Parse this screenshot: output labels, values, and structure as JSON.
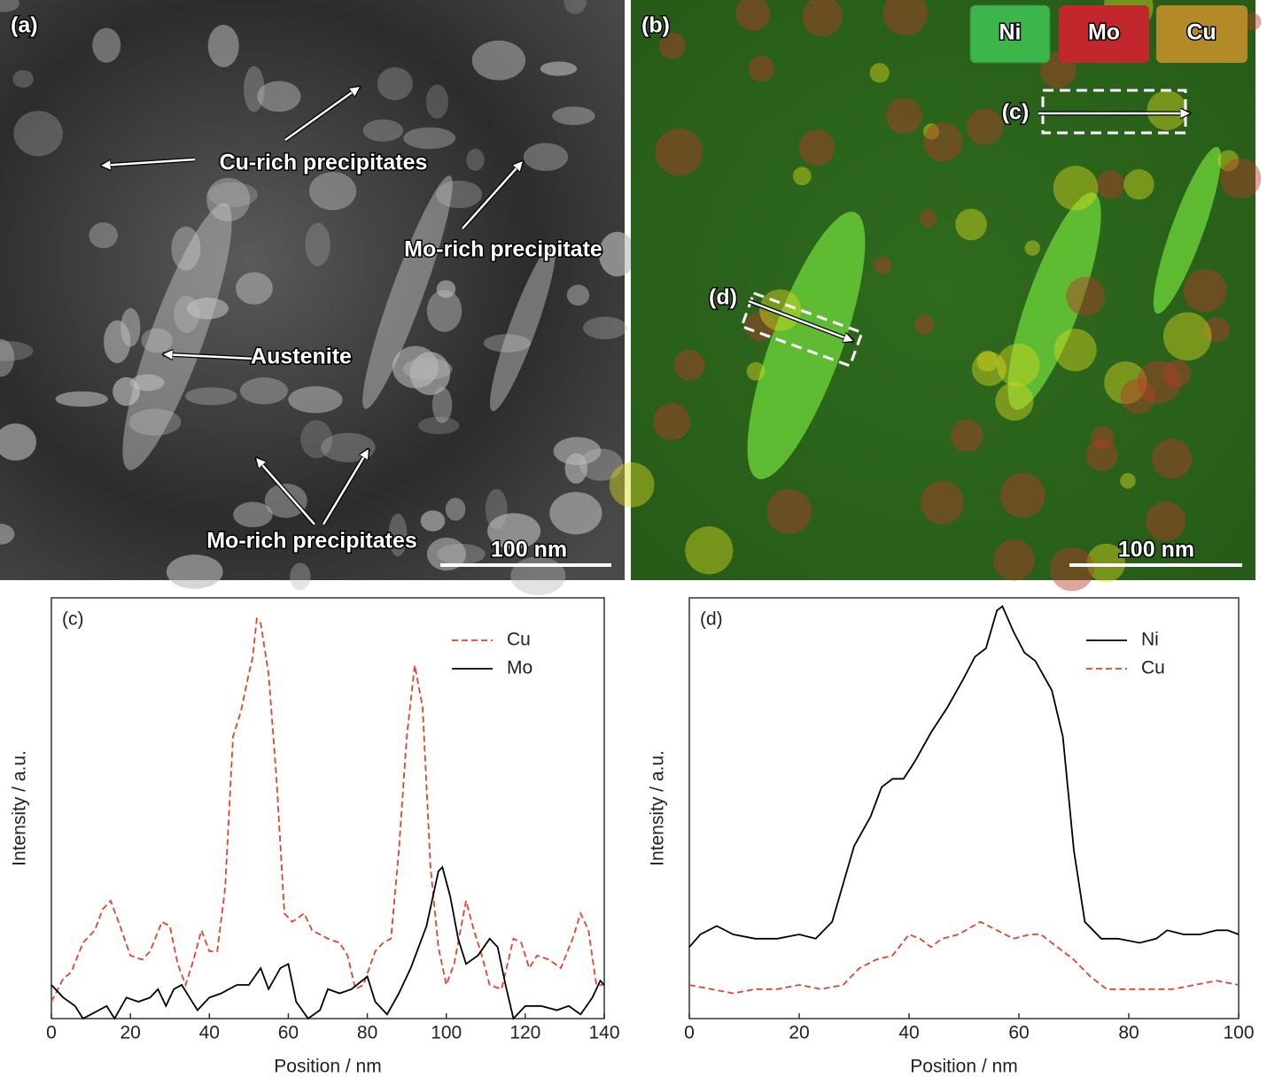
{
  "images": [
    {
      "panel_label": "(a)",
      "annotations": [
        "Cu-rich precipitates",
        "Mo-rich precipitate",
        "Austenite",
        "Mo-rich precipitates"
      ],
      "scale_bar": "100 nm"
    },
    {
      "panel_label": "(b)",
      "legend": [
        "Ni",
        "Mo",
        "Cu"
      ],
      "line_labels": [
        "(c)",
        "(d)"
      ],
      "scale_bar": "100 nm"
    }
  ],
  "chart_data": [
    {
      "type": "line",
      "panel_label": "(c)",
      "xlabel": "Position / nm",
      "ylabel": "Intensity / a.u.",
      "xlim": [
        0,
        140
      ],
      "xticks": [
        0,
        20,
        40,
        60,
        80,
        100,
        120,
        140
      ],
      "ylim": [
        0,
        100
      ],
      "legend": "upper right",
      "series": [
        {
          "name": "Cu",
          "color": "#e8412a",
          "linestyle": "dashed",
          "x": [
            0,
            3,
            5,
            8,
            11,
            13,
            15,
            17,
            20,
            23,
            25,
            28,
            30,
            32,
            34,
            36,
            38,
            40,
            42,
            44,
            46,
            48,
            50,
            51,
            52,
            53,
            55,
            57,
            59,
            61,
            64,
            66,
            70,
            73,
            75,
            77,
            79,
            82,
            84,
            86,
            88,
            90,
            92,
            94,
            96,
            98,
            100,
            102,
            105,
            107,
            109,
            111,
            114,
            117,
            119,
            121,
            123,
            126,
            129,
            132,
            134,
            136,
            138,
            140
          ],
          "values": [
            4,
            9.5,
            11,
            18,
            21,
            26,
            28,
            23,
            15,
            14,
            16,
            23,
            22,
            13,
            8,
            14,
            21,
            16,
            16,
            31,
            67,
            73,
            82,
            86,
            95,
            94,
            82,
            57,
            25,
            23,
            25,
            21,
            19,
            18,
            15,
            7,
            8,
            16,
            18,
            19,
            40,
            67,
            84,
            74,
            36,
            17,
            8,
            13,
            28,
            21,
            15,
            8,
            7,
            19,
            18,
            12,
            15,
            14,
            12,
            19,
            25,
            21,
            8,
            8
          ]
        },
        {
          "name": "Mo",
          "color": "#000000",
          "linestyle": "solid",
          "x": [
            0,
            3,
            6,
            8,
            10,
            14,
            16,
            19,
            22,
            25,
            27,
            29,
            31,
            33,
            35,
            37,
            40,
            43,
            47,
            50,
            53,
            55,
            58,
            60,
            62,
            65,
            68,
            70,
            73,
            76,
            80,
            82,
            85,
            88,
            91,
            95,
            98,
            99,
            101,
            103,
            105,
            108,
            111,
            113,
            115,
            117,
            120,
            124,
            128,
            131,
            134,
            137,
            139,
            140
          ],
          "values": [
            8,
            5,
            3,
            0,
            1,
            3,
            0,
            5,
            4,
            5,
            7,
            3,
            7,
            8,
            5,
            2,
            5,
            6,
            8,
            8,
            12,
            7,
            12,
            13,
            4,
            0,
            2,
            7,
            6,
            7,
            10,
            4,
            1,
            6,
            12,
            22,
            35,
            36,
            29,
            19,
            13,
            15,
            19,
            17,
            8,
            0,
            3,
            3,
            2,
            3,
            1,
            5,
            9,
            8
          ]
        }
      ]
    },
    {
      "type": "line",
      "panel_label": "(d)",
      "xlabel": "Position / nm",
      "ylabel": "Intensity / a.u.",
      "xlim": [
        0,
        100
      ],
      "xticks": [
        0,
        20,
        40,
        60,
        80,
        100
      ],
      "ylim": [
        0,
        100
      ],
      "legend": "upper right",
      "series": [
        {
          "name": "Ni",
          "color": "#000000",
          "linestyle": "solid",
          "x": [
            0,
            2,
            5,
            8,
            12,
            16,
            20,
            23,
            26,
            28,
            30,
            33,
            35,
            37,
            39,
            41,
            44,
            47,
            50,
            52,
            54,
            56,
            57,
            59,
            61,
            63,
            66,
            68,
            70,
            72,
            75,
            78,
            82,
            85,
            87,
            90,
            93,
            96,
            98,
            100
          ],
          "values": [
            17,
            20,
            22,
            20,
            19,
            19,
            20,
            19,
            23,
            32,
            41,
            48,
            55,
            57,
            57,
            61,
            68,
            74,
            81,
            86,
            88,
            97,
            98,
            92,
            87,
            85,
            78,
            67,
            40,
            23,
            19,
            19,
            18,
            19,
            21,
            20,
            20,
            21,
            21,
            20
          ]
        },
        {
          "name": "Cu",
          "color": "#e8412a",
          "linestyle": "dashed",
          "x": [
            0,
            4,
            8,
            12,
            16,
            20,
            24,
            28,
            31,
            34,
            37,
            40,
            42,
            44,
            46,
            49,
            53,
            56,
            59,
            62,
            64,
            67,
            70,
            73,
            76,
            80,
            84,
            88,
            92,
            96,
            100
          ],
          "values": [
            8,
            7,
            6,
            7,
            7,
            8,
            7,
            8,
            12,
            14,
            15,
            20,
            19,
            17,
            19,
            20,
            23,
            21,
            19,
            20,
            20,
            17,
            14,
            10,
            7,
            7,
            7,
            7,
            8,
            9,
            8
          ]
        }
      ]
    }
  ]
}
